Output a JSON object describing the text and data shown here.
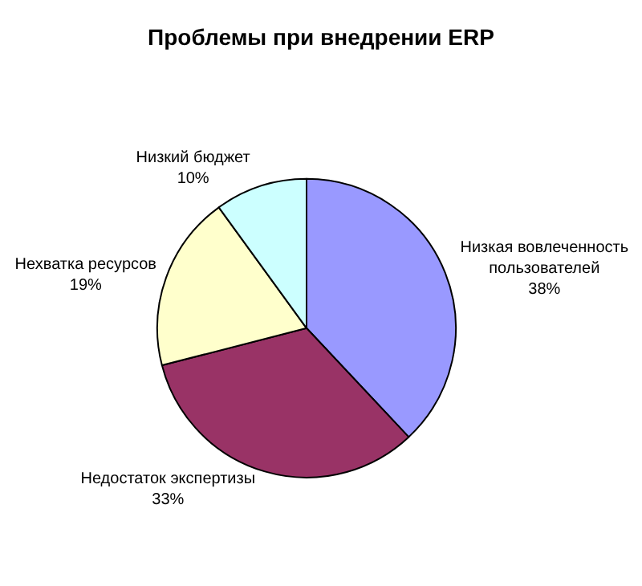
{
  "chart_data": {
    "type": "pie",
    "title": "Проблемы при внедрении ERP",
    "categories": [
      "Низкая вовлеченность\nпользователей",
      "Недостаток экспертизы",
      "Нехватка ресурсов",
      "Низкий бюджет"
    ],
    "values": [
      38,
      33,
      19,
      10
    ],
    "value_labels": [
      "38%",
      "33%",
      "19%",
      "10%"
    ],
    "colors": [
      "#9999ff",
      "#993366",
      "#ffffcc",
      "#ccffff"
    ],
    "legend": false
  }
}
